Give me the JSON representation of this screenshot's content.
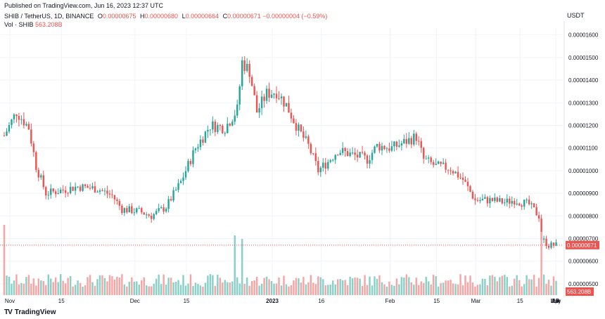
{
  "header": {
    "published": "Published on TradingView.com, Jun 16, 2023 12:37 UTC"
  },
  "legend": {
    "pair": "SHIB / TetherUS, 1D, BINANCE",
    "o_label": "O",
    "o": "0.00000675",
    "h_label": "H",
    "h": "0.00000680",
    "l_label": "L",
    "l": "0.00000664",
    "c_label": "C",
    "c": "0.00000671",
    "change": "−0.00000004 (−0.59%)",
    "vol_label": "Vol · SHIB",
    "vol": "563.208B"
  },
  "footer": {
    "brand": "TradingView"
  },
  "colors": {
    "up": "#26a69a",
    "down": "#ef5350",
    "up_vol": "#89d0c7",
    "down_vol": "#f5a6a4",
    "grid": "#f0f3fa"
  },
  "chart_data": {
    "type": "candlestick",
    "title": "SHIB / TetherUS, 1D, BINANCE",
    "unit": "USDT",
    "y_ticks": [
      "0.00001600",
      "0.00001500",
      "0.00001400",
      "0.00001300",
      "0.00001200",
      "0.00001100",
      "0.00001000",
      "0.00000900",
      "0.00000800",
      "0.00000700",
      "0.00000600",
      "0.00000500"
    ],
    "y_range": [
      4.5e-06,
      1.63e-05
    ],
    "x_ticks": [
      "Nov",
      "15",
      "Dec",
      "15",
      "2023",
      "16",
      "Feb",
      "15",
      "Mar",
      "15",
      "Apr",
      "17",
      "May",
      "15",
      "Jun",
      "19"
    ],
    "x_ticks_bold": [
      "2023"
    ],
    "last_price_label": "0.00000671",
    "last_price": 6.71e-06,
    "last_volume_label": "563.208B",
    "anchors": [
      [
        0,
        1.155e-05
      ],
      [
        5,
        1.26e-05
      ],
      [
        10,
        1.19e-05
      ],
      [
        13,
        1.02e-05
      ],
      [
        17,
        9e-06
      ],
      [
        22,
        9.1e-06
      ],
      [
        30,
        9.3e-06
      ],
      [
        38,
        9.2e-06
      ],
      [
        44,
        8.9e-06
      ],
      [
        48,
        8.3e-06
      ],
      [
        55,
        8.2e-06
      ],
      [
        60,
        8e-06
      ],
      [
        66,
        8.4e-06
      ],
      [
        72,
        9.5e-06
      ],
      [
        78,
        1.1e-05
      ],
      [
        84,
        1.2e-05
      ],
      [
        90,
        1.19e-05
      ],
      [
        95,
        1.27e-05
      ],
      [
        97,
        1.48e-05
      ],
      [
        100,
        1.44e-05
      ],
      [
        103,
        1.26e-05
      ],
      [
        107,
        1.34e-05
      ],
      [
        111,
        1.35e-05
      ],
      [
        115,
        1.29e-05
      ],
      [
        120,
        1.18e-05
      ],
      [
        124,
        1.11e-05
      ],
      [
        128,
        1e-05
      ],
      [
        132,
        1.04e-05
      ],
      [
        136,
        1.09e-05
      ],
      [
        142,
        1.07e-05
      ],
      [
        148,
        1.05e-05
      ],
      [
        152,
        1.11e-05
      ],
      [
        158,
        1.1e-05
      ],
      [
        164,
        1.13e-05
      ],
      [
        168,
        1.15e-05
      ],
      [
        171,
        1.05e-05
      ],
      [
        176,
        1.02e-05
      ],
      [
        182,
        1.01e-05
      ],
      [
        187,
        9.6e-06
      ],
      [
        192,
        8.7e-06
      ],
      [
        198,
        8.7e-06
      ],
      [
        204,
        8.6e-06
      ],
      [
        208,
        8.7e-06
      ],
      [
        214,
        8.5e-06
      ],
      [
        218,
        8e-06
      ],
      [
        219,
        7e-06
      ],
      [
        222,
        6.7e-06
      ],
      [
        225,
        6.71e-06
      ]
    ],
    "bar_count": 226,
    "volume_spikes": [
      [
        0,
        1.0
      ],
      [
        94,
        0.85
      ],
      [
        97,
        0.8
      ],
      [
        219,
        0.9
      ]
    ],
    "volume_range": [
      0,
      1
    ]
  }
}
